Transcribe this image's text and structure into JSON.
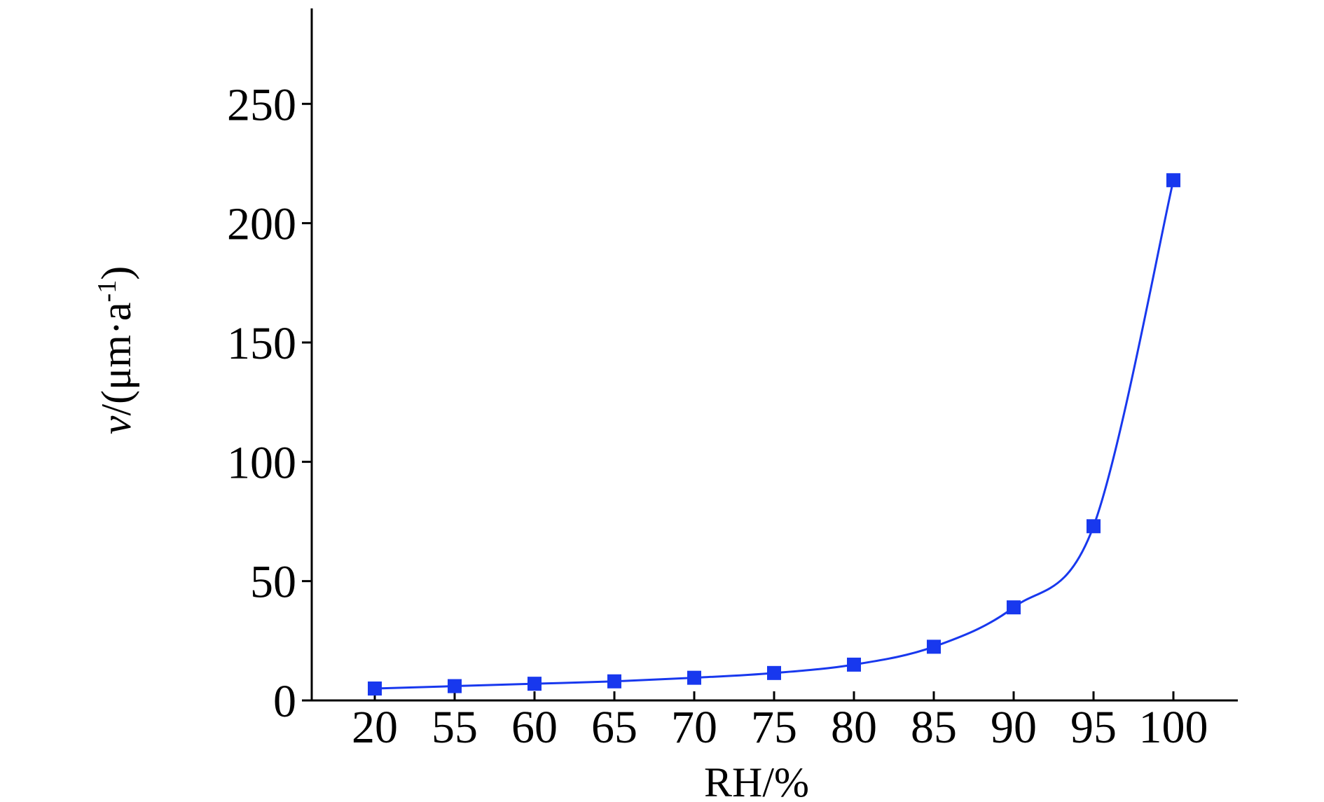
{
  "chart_data": {
    "type": "line",
    "categories": [
      "20",
      "55",
      "60",
      "65",
      "70",
      "75",
      "80",
      "85",
      "90",
      "95",
      "100"
    ],
    "series": [
      {
        "values": [
          5,
          6,
          7,
          8,
          9.5,
          11.5,
          15,
          22.5,
          39,
          73,
          218
        ],
        "color": "#1838ee",
        "marker": "square"
      }
    ],
    "xlabel": "RH/%",
    "ylabel_parts": {
      "var": "v",
      "unit_open": "/(μm·a",
      "sup": "-1",
      "unit_close": ")"
    },
    "yticks": [
      "0",
      "50",
      "100",
      "150",
      "200",
      "250"
    ],
    "ylim": [
      0,
      290
    ],
    "grid": false
  }
}
